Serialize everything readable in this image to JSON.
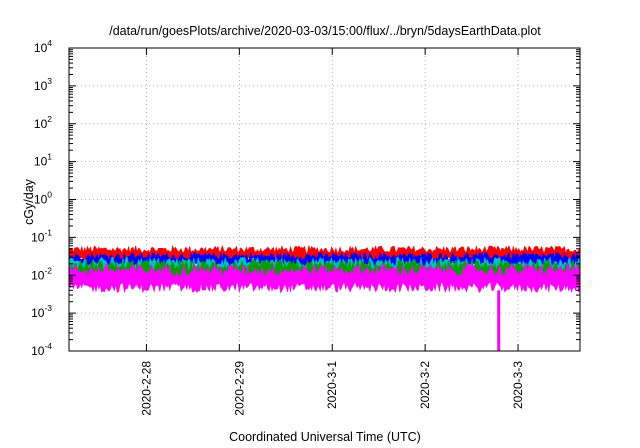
{
  "chart_data": {
    "type": "area",
    "title": "/data/run/goesPlots/archive/2020-03-03/15:00/flux/../bryn/5daysEarthData.plot",
    "xlabel": "Coordinated Universal Time (UTC)",
    "ylabel": "cGy/day",
    "y_scale": "log",
    "ylim": [
      0.0001,
      10000
    ],
    "y_ticks": [
      {
        "base": "10",
        "exp": "-4",
        "value": 0.0001
      },
      {
        "base": "10",
        "exp": "-3",
        "value": 0.001
      },
      {
        "base": "10",
        "exp": "-2",
        "value": 0.01
      },
      {
        "base": "10",
        "exp": "-1",
        "value": 0.1
      },
      {
        "base": "10",
        "exp": "0",
        "value": 1
      },
      {
        "base": "10",
        "exp": "1",
        "value": 10
      },
      {
        "base": "10",
        "exp": "2",
        "value": 100
      },
      {
        "base": "10",
        "exp": "3",
        "value": 1000
      },
      {
        "base": "10",
        "exp": "4",
        "value": 10000
      }
    ],
    "xlim": [
      "2020-02-27T04:00",
      "2020-03-03T16:00"
    ],
    "x_ticks": [
      {
        "label": "2020-2-28",
        "value": "2020-02-28T00:00"
      },
      {
        "label": "2020-2-29",
        "value": "2020-02-29T00:00"
      },
      {
        "label": "2020-3-1",
        "value": "2020-03-01T00:00"
      },
      {
        "label": "2020-3-2",
        "value": "2020-03-02T00:00"
      },
      {
        "label": "2020-3-3",
        "value": "2020-03-03T00:00"
      }
    ],
    "grid": true,
    "series": [
      {
        "color": "#ff0000",
        "typical_range": [
          0.022,
          0.06
        ]
      },
      {
        "color": "#0000ff",
        "typical_range": [
          0.015,
          0.04
        ]
      },
      {
        "color": "#00c0c0",
        "typical_range": [
          0.008,
          0.03
        ]
      },
      {
        "color": "#00a000",
        "typical_range": [
          0.006,
          0.025
        ]
      },
      {
        "color": "#ff00ff",
        "typical_range": [
          0.0035,
          0.02
        ]
      }
    ],
    "annotations": [
      {
        "description": "magenta dropout",
        "x": "2020-03-02T19:00",
        "y_min": 0.0001
      }
    ]
  }
}
